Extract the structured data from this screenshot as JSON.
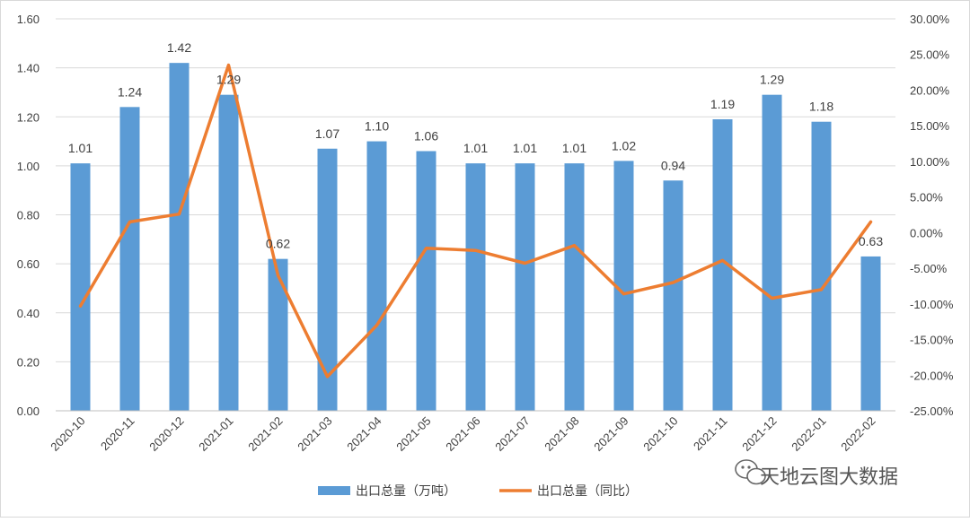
{
  "chart_data": {
    "type": "bar",
    "categories": [
      "2020-10",
      "2020-11",
      "2020-12",
      "2021-01",
      "2021-02",
      "2021-03",
      "2021-04",
      "2021-05",
      "2021-06",
      "2021-07",
      "2021-08",
      "2021-09",
      "2021-10",
      "2021-11",
      "2021-12",
      "2022-01",
      "2022-02"
    ],
    "series": [
      {
        "name": "出口总量（万吨）",
        "type": "bar",
        "axis": "left",
        "color": "#5B9BD5",
        "values": [
          1.01,
          1.24,
          1.42,
          1.29,
          0.62,
          1.07,
          1.1,
          1.06,
          1.01,
          1.01,
          1.01,
          1.02,
          0.94,
          1.19,
          1.29,
          1.18,
          0.63
        ],
        "labels": [
          "1.01",
          "1.24",
          "1.42",
          "1.29",
          "0.62",
          "1.07",
          "1.10",
          "1.06",
          "1.01",
          "1.01",
          "1.01",
          "1.02",
          "0.94",
          "1.19",
          "1.29",
          "1.18",
          "0.63"
        ]
      },
      {
        "name": "出口总量（同比）",
        "type": "line",
        "axis": "right",
        "color": "#ED7D31",
        "values": [
          -10.3,
          1.5,
          2.6,
          23.5,
          -6.0,
          -20.2,
          -13.0,
          -2.2,
          -2.5,
          -4.3,
          -1.8,
          -8.6,
          -7.0,
          -3.9,
          -9.2,
          -8.0,
          1.5
        ]
      }
    ],
    "y_left": {
      "min": 0,
      "max": 1.6,
      "ticks": [
        "0.00",
        "0.20",
        "0.40",
        "0.60",
        "0.80",
        "1.00",
        "1.20",
        "1.40",
        "1.60"
      ]
    },
    "y_right": {
      "min": -25,
      "max": 30,
      "ticks": [
        "-25.00%",
        "-20.00%",
        "-15.00%",
        "-10.00%",
        "-5.00%",
        "0.00%",
        "5.00%",
        "10.00%",
        "15.00%",
        "20.00%",
        "25.00%",
        "30.00%"
      ]
    },
    "grid": true,
    "legend_position": "bottom"
  },
  "watermark": {
    "text": "天地云图大数据",
    "icon": "wechat-icon"
  }
}
